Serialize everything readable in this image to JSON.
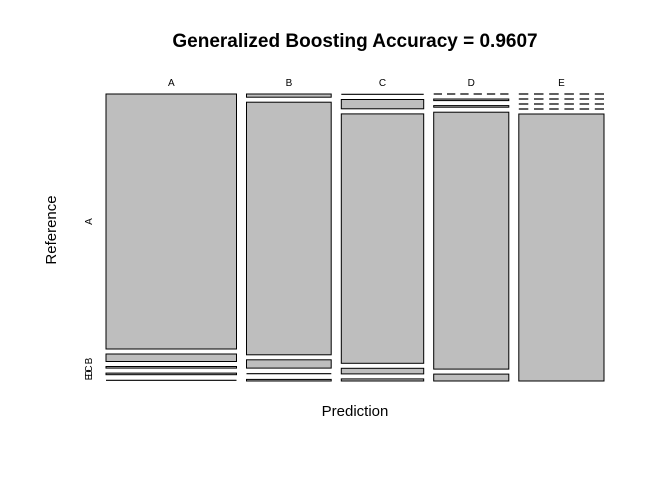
{
  "chart_data": {
    "type": "mosaic",
    "title": "Generalized Boosting Accuracy = 0.9607",
    "xlabel": "Prediction",
    "ylabel": "Reference",
    "x_categories": [
      "A",
      "B",
      "C",
      "D",
      "E"
    ],
    "y_categories": [
      "A",
      "B",
      "C",
      "D",
      "E"
    ],
    "y_tick_labels": [
      "A",
      "B",
      "C",
      "D",
      "E"
    ],
    "column_proportions": [
      0.285,
      0.185,
      0.18,
      0.164,
      0.186
    ],
    "cells": [
      [
        0.955,
        0.028,
        0.006,
        0.006,
        0.005
      ],
      [
        0.012,
        0.946,
        0.031,
        0.005,
        0.006
      ],
      [
        0.002,
        0.035,
        0.934,
        0.021,
        0.008
      ],
      [
        0.0,
        0.006,
        0.006,
        0.962,
        0.026
      ],
      [
        0.0,
        0.0,
        0.0,
        0.0,
        1.0
      ]
    ],
    "fill_color": "#bebebe"
  }
}
